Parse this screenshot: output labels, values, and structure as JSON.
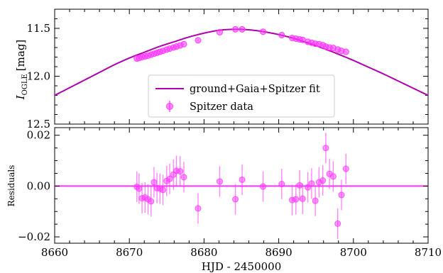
{
  "colors": {
    "model": "#b000b0",
    "points": "#ff33ff",
    "frame": "#000000"
  },
  "chart_data": [
    {
      "type": "scatter",
      "panel": "top",
      "ylabel_main": "I",
      "ylabel_sub": "OGLE",
      "ylabel_unit": "[mag]",
      "xlim": [
        8660,
        8710
      ],
      "ylim": [
        12.5,
        11.3
      ],
      "y_inverted": true,
      "yticks": [
        11.5,
        12.0,
        12.5
      ],
      "ytick_labels": [
        "11.5",
        "12.0",
        "12.5"
      ],
      "grid": false,
      "legend_position": "lower-center",
      "legend": {
        "model_label": "ground+Gaia+Spitzer fit",
        "data_label": "Spitzer data"
      },
      "model": {
        "name": "ground+Gaia+Spitzer fit",
        "x": [
          8660,
          8662,
          8664,
          8666,
          8668,
          8670,
          8672,
          8674,
          8676,
          8678,
          8680,
          8682,
          8684,
          8686,
          8688,
          8690,
          8692,
          8694,
          8696,
          8698,
          8700,
          8702,
          8704,
          8706,
          8708,
          8710
        ],
        "y": [
          12.2,
          12.12,
          12.04,
          11.96,
          11.88,
          11.81,
          11.75,
          11.69,
          11.64,
          11.59,
          11.55,
          11.52,
          11.51,
          11.515,
          11.535,
          11.565,
          11.605,
          11.655,
          11.71,
          11.77,
          11.835,
          11.905,
          11.975,
          12.05,
          12.125,
          12.2
        ]
      },
      "series": [
        {
          "name": "Spitzer data",
          "x": [
            8671.0,
            8671.3,
            8671.7,
            8672.1,
            8672.5,
            8672.9,
            8673.3,
            8673.7,
            8674.1,
            8674.5,
            8675.0,
            8675.4,
            8675.9,
            8676.3,
            8676.8,
            8677.3,
            8679.2,
            8682.1,
            8684.2,
            8685.1,
            8687.9,
            8690.4,
            8691.8,
            8692.3,
            8692.8,
            8693.2,
            8693.9,
            8694.4,
            8694.9,
            8695.4,
            8695.9,
            8696.3,
            8696.8,
            8697.3,
            8697.9,
            8698.4,
            8699.0
          ],
          "y": [
            11.815,
            11.81,
            11.8,
            11.793,
            11.785,
            11.775,
            11.765,
            11.755,
            11.745,
            11.735,
            11.722,
            11.712,
            11.7,
            11.69,
            11.678,
            11.665,
            11.625,
            11.54,
            11.51,
            11.51,
            11.535,
            11.57,
            11.6,
            11.607,
            11.615,
            11.62,
            11.64,
            11.65,
            11.66,
            11.665,
            11.675,
            11.69,
            11.7,
            11.705,
            11.72,
            11.735,
            11.745
          ],
          "yerr": 0.006
        }
      ]
    },
    {
      "type": "scatter",
      "panel": "bottom",
      "ylabel": "Residuals",
      "xlabel": "HJD - 2450000",
      "xlim": [
        8660,
        8710
      ],
      "ylim": [
        -0.0225,
        0.023
      ],
      "xticks": [
        8660,
        8670,
        8680,
        8690,
        8700,
        8710
      ],
      "xtick_labels": [
        "8660",
        "8670",
        "8680",
        "8690",
        "8700",
        "8710"
      ],
      "yticks": [
        -0.02,
        0.0,
        0.02
      ],
      "ytick_labels": [
        "−0.02",
        "0.00",
        "0.02"
      ],
      "grid": false,
      "zero_line": 0,
      "series": [
        {
          "name": "Spitzer data",
          "x": [
            8671.0,
            8671.3,
            8671.7,
            8672.1,
            8672.5,
            8672.9,
            8673.3,
            8673.7,
            8674.1,
            8674.5,
            8675.0,
            8675.4,
            8675.9,
            8676.3,
            8676.8,
            8677.3,
            8679.2,
            8682.1,
            8684.2,
            8685.1,
            8687.9,
            8690.4,
            8691.8,
            8692.3,
            8692.8,
            8693.2,
            8693.9,
            8694.4,
            8694.9,
            8695.4,
            8695.9,
            8696.3,
            8696.8,
            8697.3,
            8697.9,
            8698.4,
            8699.0
          ],
          "y": [
            -0.0003,
            -0.001,
            -0.0048,
            -0.0045,
            -0.0052,
            -0.006,
            0.0015,
            -0.0008,
            -0.001,
            -0.0015,
            0.002,
            0.0028,
            0.0045,
            0.006,
            0.0058,
            0.0035,
            -0.0088,
            0.0018,
            -0.0052,
            0.0025,
            -0.0002,
            0.0008,
            -0.0055,
            -0.0052,
            0.0003,
            -0.005,
            -0.0005,
            0.001,
            -0.0058,
            0.0015,
            0.0022,
            0.015,
            0.0048,
            0.0038,
            -0.0148,
            -0.0035,
            0.0068
          ],
          "yerr": [
            0.006,
            0.006,
            0.006,
            0.006,
            0.006,
            0.006,
            0.006,
            0.006,
            0.006,
            0.006,
            0.006,
            0.006,
            0.006,
            0.006,
            0.006,
            0.006,
            0.006,
            0.006,
            0.006,
            0.006,
            0.006,
            0.006,
            0.006,
            0.006,
            0.006,
            0.006,
            0.006,
            0.006,
            0.006,
            0.006,
            0.006,
            0.006,
            0.006,
            0.006,
            0.006,
            0.006,
            0.006
          ]
        }
      ]
    }
  ]
}
